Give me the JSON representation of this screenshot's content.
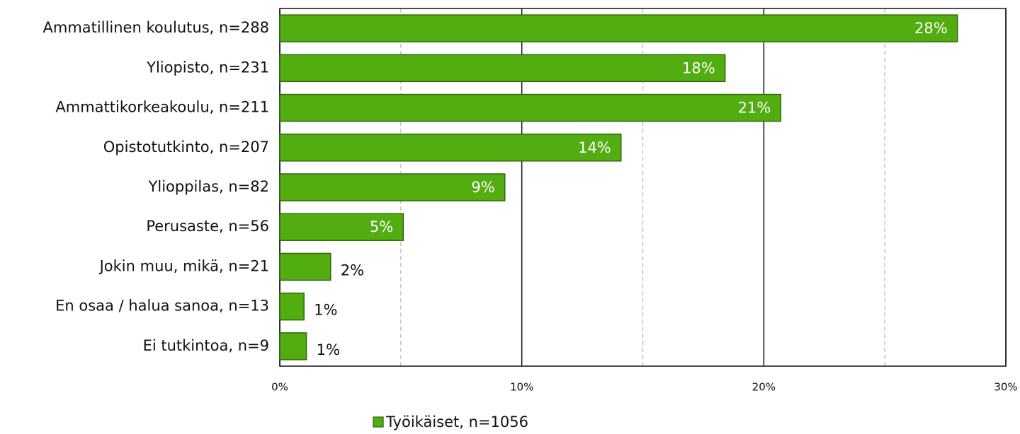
{
  "chart_data": {
    "type": "barh",
    "categories": [
      "Ammatillinen koulutus, n=288",
      "Yliopisto, n=231",
      "Ammattikorkeakoulu, n=211",
      "Opistotutkinto, n=207",
      "Ylioppilas, n=82",
      "Perusaste, n=56",
      "Jokin muu, mikä, n=21",
      "En osaa / halua sanoa, n=13",
      "Ei tutkintoa, n=9"
    ],
    "series": [
      {
        "name": "Työikäiset, n=1056",
        "color": "#52ad10",
        "values": [
          28.0,
          18.4,
          20.7,
          14.1,
          9.3,
          5.1,
          2.1,
          1.0,
          1.1
        ],
        "value_labels": [
          "28%",
          "18%",
          "21%",
          "14%",
          "9%",
          "5%",
          "2%",
          "1%",
          "1%"
        ]
      }
    ],
    "xlim": [
      0,
      30
    ],
    "xticks": [
      {
        "value": 0,
        "label": "0%"
      },
      {
        "value": 10,
        "label": "10%"
      },
      {
        "value": 20,
        "label": "20%"
      },
      {
        "value": 30,
        "label": "30%"
      }
    ],
    "minor_xticks": [
      5,
      15,
      25
    ],
    "grid": true,
    "legend": "bottom"
  }
}
